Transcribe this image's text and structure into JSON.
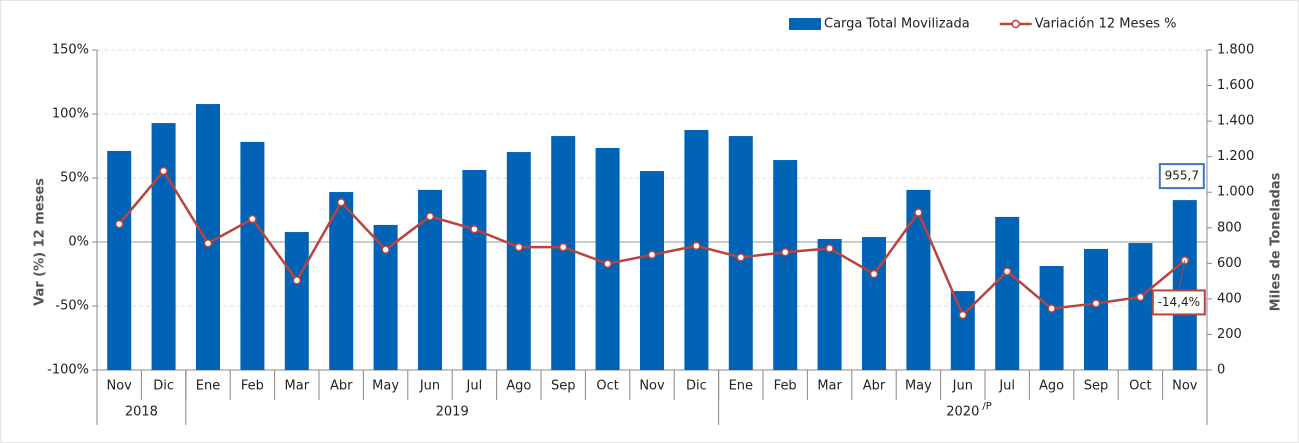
{
  "chart_data": {
    "type": "bar",
    "categories": [
      "Nov",
      "Dic",
      "Ene",
      "Feb",
      "Mar",
      "Abr",
      "May",
      "Jun",
      "Jul",
      "Ago",
      "Sep",
      "Oct",
      "Nov",
      "Dic",
      "Ene",
      "Feb",
      "Mar",
      "Abr",
      "May",
      "Jun",
      "Jul",
      "Ago",
      "Sep",
      "Oct",
      "Nov"
    ],
    "years": [
      {
        "label": "2018",
        "span": 2
      },
      {
        "label": "2019",
        "span": 12
      },
      {
        "label": "2020",
        "suffix": "/P",
        "span": 11
      }
    ],
    "ylabel": "Var (%) 12 meses",
    "y2label": "Miles de Toneladas",
    "ylim": [
      -100,
      150
    ],
    "yticks": [
      {
        "value": -100,
        "label": "-100%"
      },
      {
        "value": -50,
        "label": "-50%"
      },
      {
        "value": 0,
        "label": "0%"
      },
      {
        "value": 50,
        "label": "50%"
      },
      {
        "value": 100,
        "label": "100%"
      },
      {
        "value": 150,
        "label": "150%"
      }
    ],
    "y2lim": [
      0,
      1800
    ],
    "y2ticks": [
      0,
      200,
      400,
      600,
      800,
      {
        "value": 1000,
        "label": "1.000"
      },
      {
        "value": 1200,
        "label": "1.200"
      },
      {
        "value": 1400,
        "label": "1.400"
      },
      {
        "value": 1600,
        "label": "1.600"
      },
      {
        "value": 1800,
        "label": "1.800"
      }
    ],
    "grid": true,
    "legend": "top-right",
    "series": [
      {
        "name": "Carga Total Movilizada",
        "type": "bar",
        "axis": "y2",
        "color": "#0063b5",
        "values": [
          1232,
          1389,
          1496,
          1283,
          776,
          1001,
          816,
          1013,
          1125,
          1226,
          1316,
          1249,
          1119,
          1350,
          1316,
          1181,
          737,
          748,
          1013,
          444,
          861,
          585,
          681,
          714,
          955.7
        ],
        "value_labels": [
          null,
          null,
          null,
          null,
          null,
          null,
          null,
          null,
          null,
          null,
          null,
          null,
          null,
          null,
          null,
          null,
          null,
          null,
          null,
          null,
          null,
          null,
          null,
          null,
          "955,7"
        ]
      },
      {
        "name": "Variación 12 Meses %",
        "type": "line",
        "axis": "y",
        "color": "#b8433f",
        "values": [
          14,
          55.5,
          -1,
          18,
          -30,
          31,
          -6,
          20,
          10,
          -4,
          -4,
          -17,
          -10,
          -3,
          -12,
          -8,
          -5,
          -25,
          23,
          -57,
          -23,
          -52,
          -48,
          -43,
          -14.4
        ],
        "value_labels": [
          null,
          null,
          null,
          null,
          null,
          null,
          null,
          null,
          null,
          null,
          null,
          null,
          null,
          null,
          null,
          null,
          null,
          null,
          null,
          null,
          null,
          null,
          null,
          null,
          "-14,4%"
        ]
      }
    ]
  }
}
